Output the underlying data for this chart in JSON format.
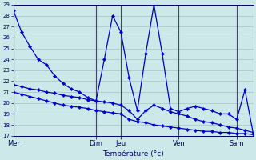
{
  "title": "Température (°c)",
  "background_color": "#cce8e8",
  "grid_color": "#99bbbb",
  "line_color": "#0000cc",
  "sep_color": "#444466",
  "y_min": 17,
  "y_max": 29,
  "y_ticks": [
    17,
    18,
    19,
    20,
    21,
    22,
    23,
    24,
    25,
    26,
    27,
    28,
    29
  ],
  "day_labels": [
    "Mer",
    "Dim",
    "Jeu",
    "Ven",
    "Sam"
  ],
  "day_positions": [
    0,
    10,
    13,
    20,
    27
  ],
  "n_points": 30,
  "series1_x": [
    0,
    1,
    2,
    3,
    4,
    5,
    6,
    7,
    8,
    9,
    10,
    11,
    12,
    13,
    14,
    15,
    16,
    17,
    18,
    19,
    20,
    21,
    22,
    23,
    24,
    25,
    26,
    27,
    28,
    29
  ],
  "series1_y": [
    28.5,
    26.5,
    25.2,
    24.0,
    23.5,
    22.5,
    21.8,
    21.3,
    21.0,
    20.5,
    20.2,
    24.0,
    28.0,
    26.5,
    22.3,
    19.3,
    24.5,
    29.0,
    24.5,
    19.5,
    19.2,
    19.5,
    19.7,
    19.5,
    19.3,
    19.0,
    19.0,
    18.5,
    21.2,
    17.2
  ],
  "series2_x": [
    0,
    1,
    2,
    3,
    4,
    5,
    6,
    7,
    8,
    9,
    10,
    11,
    12,
    13,
    14,
    15,
    16,
    17,
    18,
    19,
    20,
    21,
    22,
    23,
    24,
    25,
    26,
    27,
    28,
    29
  ],
  "series2_y": [
    21.7,
    21.5,
    21.3,
    21.2,
    21.0,
    20.9,
    20.7,
    20.6,
    20.5,
    20.3,
    20.2,
    20.1,
    20.0,
    19.8,
    19.3,
    18.5,
    19.3,
    19.8,
    19.5,
    19.2,
    19.0,
    18.8,
    18.5,
    18.3,
    18.2,
    18.0,
    17.8,
    17.7,
    17.5,
    17.3
  ],
  "series3_x": [
    0,
    1,
    2,
    3,
    4,
    5,
    6,
    7,
    8,
    9,
    10,
    11,
    12,
    13,
    14,
    15,
    16,
    17,
    18,
    19,
    20,
    21,
    22,
    23,
    24,
    25,
    26,
    27,
    28,
    29
  ],
  "series3_y": [
    21.0,
    20.8,
    20.6,
    20.4,
    20.2,
    20.0,
    19.8,
    19.7,
    19.6,
    19.5,
    19.3,
    19.2,
    19.1,
    19.0,
    18.5,
    18.3,
    18.2,
    18.0,
    17.9,
    17.8,
    17.7,
    17.6,
    17.5,
    17.4,
    17.4,
    17.3,
    17.3,
    17.2,
    17.2,
    17.1
  ]
}
